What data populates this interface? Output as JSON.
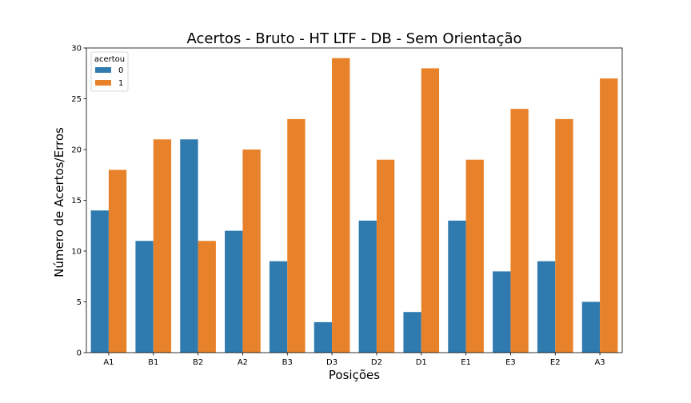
{
  "chart_data": {
    "type": "bar",
    "title": "Acertos - Bruto - HT LTF - DB - Sem Orientação",
    "xlabel": "Posições",
    "ylabel": "Número de Acertos/Erros",
    "categories": [
      "A1",
      "B1",
      "B2",
      "A2",
      "B3",
      "D3",
      "D2",
      "D1",
      "E1",
      "E3",
      "E2",
      "A3"
    ],
    "series": [
      {
        "name": "0",
        "color": "#2f7bb0",
        "values": [
          14,
          11,
          21,
          12,
          9,
          3,
          13,
          4,
          13,
          8,
          9,
          5
        ]
      },
      {
        "name": "1",
        "color": "#e8822a",
        "values": [
          18,
          21,
          11,
          20,
          23,
          29,
          19,
          28,
          19,
          24,
          23,
          27
        ]
      }
    ],
    "ylim": [
      0,
      30
    ],
    "yticks": [
      0,
      5,
      10,
      15,
      20,
      25,
      30
    ],
    "grid": false,
    "legend": {
      "title": "acertou",
      "placement": "top-left"
    }
  }
}
